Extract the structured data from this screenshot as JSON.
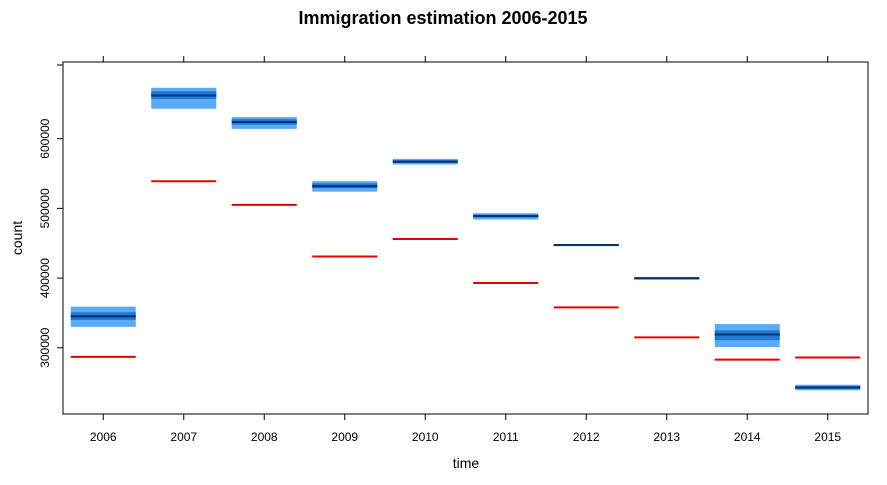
{
  "chart_data": {
    "type": "bar",
    "title": "Immigration estimation 2006-2015",
    "xlabel": "time",
    "ylabel": "count",
    "categories": [
      "2006",
      "2007",
      "2008",
      "2009",
      "2010",
      "2011",
      "2012",
      "2013",
      "2014",
      "2015"
    ],
    "ylim": [
      205000,
      710000
    ],
    "yticks": [
      300000,
      400000,
      500000,
      600000
    ],
    "grid": false,
    "legend": "none",
    "series": [
      {
        "values": [
          287000,
          539000,
          505000,
          431000,
          456000,
          393000,
          358000,
          315000,
          283000,
          286000
        ],
        "color": "#e60000"
      },
      {
        "ranges": [
          {
            "low": 330000,
            "high": 359000,
            "median": 345000,
            "q1": 340000,
            "q3": 351000
          },
          {
            "low": 643000,
            "high": 673000,
            "median": 662000,
            "q1": 657000,
            "q3": 668000
          },
          {
            "low": 614000,
            "high": 631000,
            "median": 624000,
            "q1": 620000,
            "q3": 628000
          },
          {
            "low": 524000,
            "high": 539000,
            "median": 532000,
            "q1": 529000,
            "q3": 536000
          },
          {
            "low": 563000,
            "high": 571000,
            "median": 567000,
            "q1": 565000,
            "q3": 569000
          },
          {
            "low": 484000,
            "high": 493000,
            "median": 489000,
            "q1": 487000,
            "q3": 491000
          },
          {
            "low": 446000,
            "high": 449000,
            "median": 447500,
            "q1": 447000,
            "q3": 448000
          },
          {
            "low": 399000,
            "high": 401000,
            "median": 400000,
            "q1": 400000,
            "q3": 400000
          },
          {
            "low": 301000,
            "high": 334000,
            "median": 319000,
            "q1": 311000,
            "q3": 325000
          },
          {
            "low": 239000,
            "high": 247000,
            "median": 243000,
            "q1": 241000,
            "q3": 245000
          }
        ],
        "color_light": "#5aabf7",
        "color_mid": "#1e78d6",
        "color_dark": "#0a2f6b"
      }
    ]
  }
}
